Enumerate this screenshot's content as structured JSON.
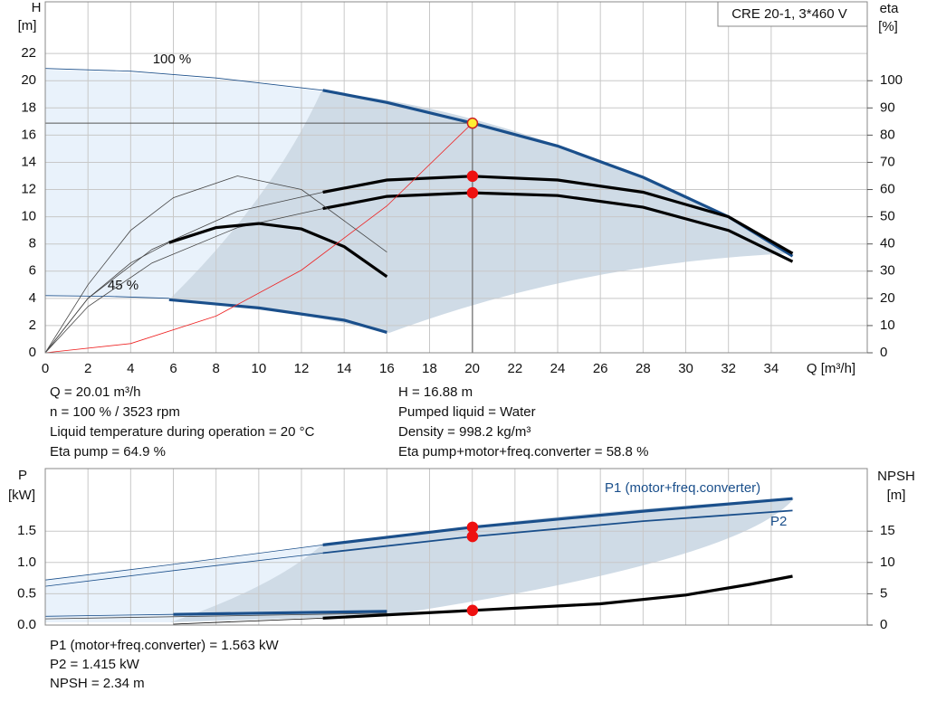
{
  "chart_data": [
    {
      "type": "line",
      "xlabel": "Q [m³/h]",
      "ylabel": [
        "H",
        "[m]"
      ],
      "y2label": [
        "eta",
        "[%]"
      ],
      "xlim": [
        0,
        38.5
      ],
      "xticks": [
        0,
        2,
        4,
        6,
        8,
        10,
        12,
        14,
        16,
        18,
        20,
        22,
        24,
        26,
        28,
        30,
        32,
        34
      ],
      "ylim": [
        0,
        25.8
      ],
      "yticks": [
        0,
        2,
        4,
        6,
        8,
        10,
        12,
        14,
        16,
        18,
        20,
        22
      ],
      "y2lim": [
        0,
        129
      ],
      "y2ticks": [
        0,
        10,
        20,
        30,
        40,
        50,
        60,
        70,
        80,
        90,
        100
      ],
      "grid": true,
      "annotations": [
        "100 %",
        "45 %"
      ],
      "series": [
        {
          "color": "#1a4f8b",
          "style": "thin",
          "x": [
            0,
            4,
            8,
            13
          ],
          "values": [
            20.9,
            20.7,
            20.2,
            19.3
          ]
        },
        {
          "color": "#1a4f8b",
          "style": "thick",
          "x": [
            13,
            16,
            20,
            24,
            28,
            32,
            35
          ],
          "values": [
            19.3,
            18.4,
            16.88,
            15.2,
            12.9,
            10.0,
            7.1
          ]
        },
        {
          "color": "#1a4f8b",
          "style": "thin",
          "x": [
            0,
            3,
            5.8
          ],
          "values": [
            4.2,
            4.15,
            4.0
          ]
        },
        {
          "color": "#1a4f8b",
          "style": "thick",
          "x": [
            5.8,
            10,
            14,
            16
          ],
          "values": [
            3.9,
            3.3,
            2.4,
            1.5
          ]
        },
        {
          "color": "#444444",
          "style": "thin",
          "axis": "y2",
          "x": [
            0,
            2,
            5,
            9,
            13
          ],
          "values": [
            0,
            20,
            38,
            52,
            59
          ]
        },
        {
          "color": "#444444",
          "style": "thin",
          "axis": "y2",
          "x": [
            0,
            2,
            5,
            9,
            13
          ],
          "values": [
            0,
            17,
            33,
            46,
            53
          ]
        },
        {
          "color": "#000000",
          "style": "thick",
          "axis": "y2",
          "x": [
            13,
            16,
            20,
            24,
            28,
            32,
            35
          ],
          "values": [
            59,
            63.5,
            64.9,
            63.5,
            59,
            50,
            36.5
          ]
        },
        {
          "color": "#000000",
          "style": "thick",
          "axis": "y2",
          "x": [
            13,
            16,
            20,
            24,
            28,
            32,
            35
          ],
          "values": [
            53,
            57.5,
            58.8,
            57.8,
            53.5,
            45,
            33.5
          ]
        },
        {
          "color": "#444444",
          "style": "thin",
          "axis": "y2",
          "x": [
            0,
            2,
            4,
            6,
            9,
            12,
            16
          ],
          "values": [
            0,
            25,
            45,
            57,
            65,
            60,
            37
          ]
        },
        {
          "color": "#444444",
          "style": "thin",
          "axis": "y2",
          "x": [
            0,
            2,
            4,
            5.8
          ],
          "values": [
            0,
            20,
            33,
            40.5
          ]
        },
        {
          "color": "#000000",
          "style": "thick",
          "axis": "y2",
          "x": [
            5.8,
            8,
            10,
            12,
            14,
            16
          ],
          "values": [
            40.5,
            46,
            47.5,
            45.5,
            39,
            28
          ]
        },
        {
          "color": "#ee2222",
          "style": "thin",
          "x": [
            0,
            4,
            8,
            12,
            16,
            20
          ],
          "values": [
            0,
            0.68,
            2.7,
            6.08,
            10.8,
            16.88
          ]
        }
      ],
      "points": [
        {
          "x": 20.01,
          "value": 16.88,
          "color": "#ffee33",
          "cross": true
        },
        {
          "x": 20.01,
          "value": 64.9,
          "axis": "y2",
          "color": "#ee1111"
        },
        {
          "x": 20.01,
          "value": 58.8,
          "axis": "y2",
          "color": "#ee1111"
        }
      ]
    },
    {
      "type": "line",
      "ylabel": [
        "P",
        "[kW]"
      ],
      "y2label": [
        "NPSH",
        "[m]"
      ],
      "xlim": [
        0,
        38.5
      ],
      "ylim": [
        0,
        2.5
      ],
      "yticks": [
        {
          "value": 0,
          "label": "0.0"
        },
        0.5,
        {
          "value": 1,
          "label": "1.0"
        },
        1.5
      ],
      "y2lim": [
        0,
        25
      ],
      "y2ticks": [
        0,
        5,
        10,
        15
      ],
      "grid": true,
      "series": [
        {
          "color": "#1a4f8b",
          "style": "thin",
          "x": [
            0,
            6,
            13
          ],
          "values": [
            0.72,
            0.97,
            1.28
          ]
        },
        {
          "name": "P1 (motor+freq.converter)",
          "color": "#1a4f8b",
          "style": "thick",
          "x": [
            13,
            20,
            28,
            35
          ],
          "values": [
            1.28,
            1.563,
            1.82,
            2.02
          ]
        },
        {
          "color": "#1a4f8b",
          "style": "thin",
          "x": [
            0,
            6,
            13
          ],
          "values": [
            0.62,
            0.87,
            1.15
          ]
        },
        {
          "name": "P2",
          "color": "#1a4f8b",
          "style": "medium",
          "x": [
            13,
            20,
            28,
            35
          ],
          "values": [
            1.15,
            1.415,
            1.66,
            1.83
          ]
        },
        {
          "color": "#1a4f8b",
          "style": "thin",
          "x": [
            0,
            6
          ],
          "values": [
            0.14,
            0.17
          ]
        },
        {
          "color": "#1a4f8b",
          "style": "thick",
          "x": [
            6,
            16
          ],
          "values": [
            0.17,
            0.22
          ]
        },
        {
          "color": "#444444",
          "style": "thin",
          "x": [
            0,
            16
          ],
          "values": [
            0.1,
            0.19
          ]
        },
        {
          "color": "#000000",
          "style": "thin",
          "axis": "y2",
          "x": [
            6,
            13
          ],
          "values": [
            0.15,
            1.1
          ]
        },
        {
          "color": "#000000",
          "style": "thick",
          "axis": "y2",
          "x": [
            13,
            20,
            26,
            30,
            33,
            35
          ],
          "values": [
            1.1,
            2.34,
            3.4,
            4.8,
            6.5,
            7.8
          ]
        }
      ],
      "points": [
        {
          "x": 20.01,
          "value": 1.563,
          "color": "#ee1111"
        },
        {
          "x": 20.01,
          "value": 1.415,
          "color": "#ee1111"
        },
        {
          "x": 20.01,
          "value": 2.34,
          "axis": "y2",
          "color": "#ee1111"
        }
      ]
    }
  ],
  "pump_label": "CRE 20-1, 3*460 V",
  "info_left": [
    "Q = 20.01 m³/h",
    "n = 100 % / 3523 rpm",
    "Liquid temperature during operation = 20 °C",
    "Eta pump = 64.9 %"
  ],
  "info_right": [
    "H = 16.88 m",
    "Pumped liquid = Water",
    "Density = 998.2 kg/m³",
    "Eta pump+motor+freq.converter = 58.8 %"
  ],
  "info_bottom": [
    "P1 (motor+freq.converter) = 1.563 kW",
    "P2 = 1.415 kW",
    "NPSH = 2.34 m"
  ]
}
